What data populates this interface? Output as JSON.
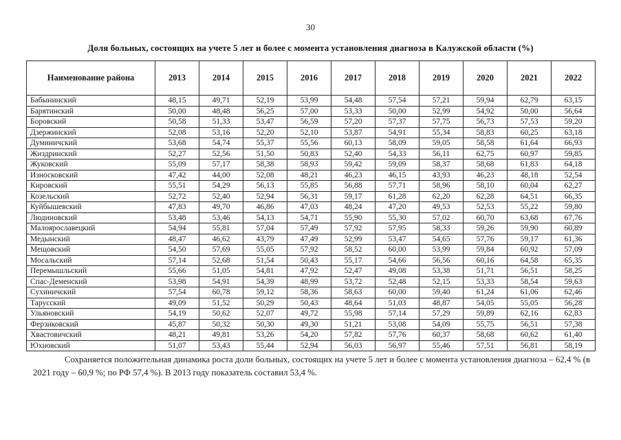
{
  "page": {
    "number": "30",
    "title": "Доля больных, состоящих на учете 5 лет и более с момента установления диагноза в Калужской области (%)"
  },
  "table": {
    "header_col": "Наименование района",
    "years": [
      "2013",
      "2014",
      "2015",
      "2016",
      "2017",
      "2018",
      "2019",
      "2020",
      "2021",
      "2022"
    ],
    "rows": [
      {
        "name": "Бабынинский",
        "values": [
          "48,15",
          "49,71",
          "52,19",
          "53,99",
          "54,48",
          "57,54",
          "57,21",
          "59,94",
          "62,79",
          "63,15"
        ]
      },
      {
        "name": "Барятинский",
        "values": [
          "50,00",
          "48,48",
          "56,25",
          "57,00",
          "53,33",
          "50,00",
          "52,99",
          "54,92",
          "50,00",
          "56,64"
        ]
      },
      {
        "name": "Боровский",
        "values": [
          "50,58",
          "51,33",
          "53,47",
          "56,59",
          "57,20",
          "57,37",
          "57,75",
          "56,73",
          "57,53",
          "59,20"
        ]
      },
      {
        "name": "Дзержинский",
        "values": [
          "52,08",
          "53,16",
          "52,20",
          "52,10",
          "53,87",
          "54,91",
          "55,34",
          "58,83",
          "60,25",
          "63,18"
        ]
      },
      {
        "name": "Думиничский",
        "values": [
          "53,68",
          "54,74",
          "55,37",
          "55,56",
          "60,13",
          "58,09",
          "59,05",
          "58,58",
          "61,64",
          "66,93"
        ]
      },
      {
        "name": "Жиздринский",
        "values": [
          "52,27",
          "52,56",
          "51,50",
          "50,83",
          "52,40",
          "54,33",
          "56,11",
          "62,75",
          "60,97",
          "59,85"
        ]
      },
      {
        "name": "Жуковский",
        "values": [
          "55,09",
          "57,17",
          "58,38",
          "58,93",
          "59,42",
          "59,09",
          "58,37",
          "58,68",
          "61,83",
          "64,18"
        ]
      },
      {
        "name": "Износковский",
        "values": [
          "47,42",
          "44,00",
          "52,08",
          "48,21",
          "46,23",
          "46,15",
          "43,93",
          "46,23",
          "48,18",
          "52,54"
        ]
      },
      {
        "name": "Кировский",
        "values": [
          "55,51",
          "54,29",
          "56,13",
          "55,85",
          "56,88",
          "57,71",
          "58,96",
          "58,10",
          "60,04",
          "62,27"
        ]
      },
      {
        "name": "Козельский",
        "values": [
          "52,72",
          "52,40",
          "52,94",
          "56,31",
          "59,17",
          "61,28",
          "62,20",
          "62,28",
          "64,51",
          "66,35"
        ]
      },
      {
        "name": "Куйбышевский",
        "values": [
          "47,83",
          "49,70",
          "46,86",
          "47,03",
          "48,24",
          "47,20",
          "49,53",
          "52,53",
          "55,22",
          "59,80"
        ]
      },
      {
        "name": "Людиновский",
        "values": [
          "53,48",
          "53,46",
          "54,13",
          "54,71",
          "55,90",
          "55,30",
          "57,02",
          "60,70",
          "63,68",
          "67,76"
        ]
      },
      {
        "name": "Малоярославецкий",
        "values": [
          "54,94",
          "55,81",
          "57,04",
          "57,49",
          "57,92",
          "57,95",
          "58,33",
          "59,26",
          "59,90",
          "60,89"
        ]
      },
      {
        "name": "Медынский",
        "values": [
          "48,47",
          "46,62",
          "43,79",
          "47,49",
          "52,99",
          "53,47",
          "54,65",
          "57,76",
          "59,17",
          "61,36"
        ]
      },
      {
        "name": "Мещовский",
        "values": [
          "54,50",
          "57,69",
          "55,05",
          "57,92",
          "58,52",
          "60,00",
          "53,99",
          "59,84",
          "60,92",
          "57,09"
        ]
      },
      {
        "name": "Мосальский",
        "values": [
          "57,14",
          "52,68",
          "51,54",
          "50,43",
          "55,17",
          "54,66",
          "56,56",
          "60,16",
          "64,58",
          "65,35"
        ]
      },
      {
        "name": "Перемышльский",
        "values": [
          "55,66",
          "51,05",
          "54,81",
          "47,92",
          "52,47",
          "49,08",
          "53,38",
          "51,71",
          "56,51",
          "58,25"
        ]
      },
      {
        "name": "Спас-Деменский",
        "values": [
          "53,98",
          "54,91",
          "54,39",
          "48,99",
          "53,72",
          "52,48",
          "52,15",
          "53,33",
          "58,54",
          "59,63"
        ]
      },
      {
        "name": "Сухиничский",
        "values": [
          "57,54",
          "60,78",
          "59,12",
          "58,36",
          "58,63",
          "60,00",
          "59,40",
          "61,24",
          "61,06",
          "62,46"
        ]
      },
      {
        "name": "Тарусский",
        "values": [
          "49,09",
          "51,52",
          "50,29",
          "50,43",
          "48,64",
          "51,03",
          "48,87",
          "54,05",
          "55,05",
          "56,28"
        ]
      },
      {
        "name": "Ульяновский",
        "values": [
          "54,19",
          "50,62",
          "52,07",
          "49,72",
          "55,98",
          "57,14",
          "57,29",
          "59,89",
          "62,16",
          "62,83"
        ]
      },
      {
        "name": "Ферзиковский",
        "values": [
          "45,87",
          "50,32",
          "50,30",
          "49,30",
          "51,21",
          "53,08",
          "54,09",
          "55,75",
          "56,51",
          "57,38"
        ]
      },
      {
        "name": "Хвастовичский",
        "values": [
          "48,21",
          "49,81",
          "53,26",
          "54,20",
          "57,82",
          "57,76",
          "60,37",
          "58,68",
          "60,62",
          "61,40"
        ]
      },
      {
        "name": "Юхновский",
        "values": [
          "51,07",
          "53,43",
          "55,44",
          "52,94",
          "56,03",
          "56,97",
          "55,46",
          "57,51",
          "56,81",
          "58,19"
        ]
      }
    ]
  },
  "footer": {
    "text": "Сохраняется положительная динамика роста доли больных, состоящих на учете 5 лет и более с момента установления диагноза – 62,4 % (в 2021 году – 60,9 %; по РФ 57,4 %). В 2013 году показатель составил 53,4 %."
  }
}
